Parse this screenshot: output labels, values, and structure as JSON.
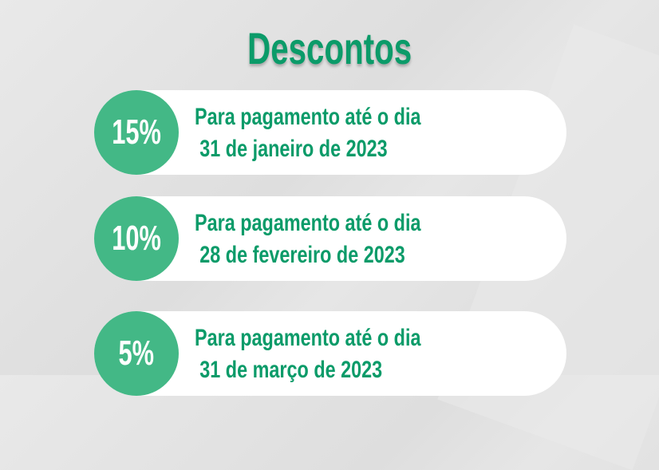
{
  "heading": "Descontos",
  "colors": {
    "accent": "#0b9b69",
    "circle": "#43b886"
  },
  "discounts": [
    {
      "percent": "15%",
      "line1": "Para pagamento até o dia",
      "line2": "31 de janeiro de 2023"
    },
    {
      "percent": "10%",
      "line1": "Para pagamento até o dia",
      "line2": "28 de fevereiro de 2023"
    },
    {
      "percent": "5%",
      "line1": "Para pagamento até o dia",
      "line2": "31 de março de 2023"
    }
  ]
}
